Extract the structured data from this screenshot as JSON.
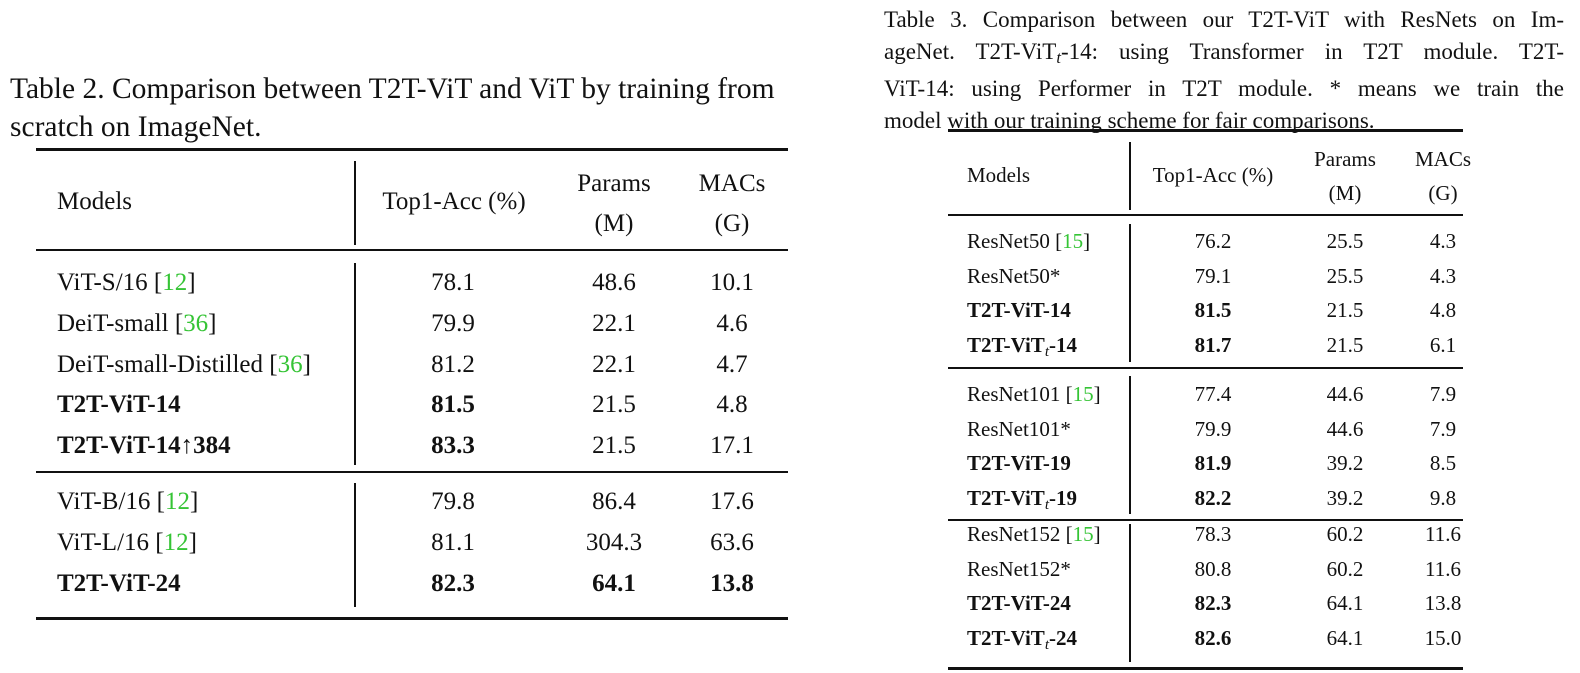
{
  "table2": {
    "caption": "Table 2. Comparison between T2T-ViT and ViT by training from scratch on ImageNet.",
    "caption_lines": [
      "Table 2. Comparison between T2T-ViT and ViT by training from",
      "scratch on ImageNet."
    ],
    "headers": {
      "models": "Models",
      "top1": "Top1-Acc (%)",
      "params_1": "Params",
      "params_2": "(M)",
      "macs_1": "MACs",
      "macs_2": "(G)"
    },
    "groups": [
      [
        {
          "model": "ViT-S/16",
          "ref": "12",
          "top1": "78.1",
          "params": "48.6",
          "macs": "10.1",
          "bold": []
        },
        {
          "model": "DeiT-small",
          "ref": "36",
          "top1": "79.9",
          "params": "22.1",
          "macs": "4.6",
          "bold": []
        },
        {
          "model": "DeiT-small-Distilled",
          "ref": "36",
          "top1": "81.2",
          "params": "22.1",
          "macs": "4.7",
          "bold": []
        },
        {
          "model": "T2T-ViT-14",
          "ref": "",
          "top1": "81.5",
          "params": "21.5",
          "macs": "4.8",
          "bold": [
            "model",
            "top1"
          ]
        },
        {
          "model": "T2T-ViT-14↑384",
          "ref": "",
          "top1": "83.3",
          "params": "21.5",
          "macs": "17.1",
          "bold": [
            "model",
            "top1"
          ]
        }
      ],
      [
        {
          "model": "ViT-B/16",
          "ref": "12",
          "top1": "79.8",
          "params": "86.4",
          "macs": "17.6",
          "bold": []
        },
        {
          "model": "ViT-L/16",
          "ref": "12",
          "top1": "81.1",
          "params": "304.3",
          "macs": "63.6",
          "bold": []
        },
        {
          "model": "T2T-ViT-24",
          "ref": "",
          "top1": "82.3",
          "params": "64.1",
          "macs": "13.8",
          "bold": [
            "model",
            "top1",
            "params",
            "macs"
          ]
        }
      ]
    ]
  },
  "table3": {
    "caption_lines": [
      "Table 3. Comparison between our T2T-ViT with ResNets on Im-",
      "ageNet. T2T-ViT_t-14: using Transformer in T2T module. T2T-",
      "ViT-14: using Performer in T2T module. * means we train the",
      "model with our training scheme for fair comparisons."
    ],
    "headers": {
      "models": "Models",
      "top1": "Top1-Acc (%)",
      "params_1": "Params",
      "params_2": "(M)",
      "macs_1": "MACs",
      "macs_2": "(G)"
    },
    "groups": [
      [
        {
          "model": "ResNet50",
          "ref": "15",
          "top1": "76.2",
          "params": "25.5",
          "macs": "4.3",
          "bold": []
        },
        {
          "model": "ResNet50*",
          "ref": "",
          "top1": "79.1",
          "params": "25.5",
          "macs": "4.3",
          "bold": []
        },
        {
          "model": "T2T-ViT-14",
          "ref": "",
          "top1": "81.5",
          "params": "21.5",
          "macs": "4.8",
          "bold": [
            "model",
            "top1"
          ]
        },
        {
          "model": "T2T-ViT",
          "sub": "t",
          "suffix": "-14",
          "ref": "",
          "top1": "81.7",
          "params": "21.5",
          "macs": "6.1",
          "bold": [
            "model",
            "top1"
          ]
        }
      ],
      [
        {
          "model": "ResNet101",
          "ref": "15",
          "top1": "77.4",
          "params": "44.6",
          "macs": "7.9",
          "bold": []
        },
        {
          "model": "ResNet101*",
          "ref": "",
          "top1": "79.9",
          "params": "44.6",
          "macs": "7.9",
          "bold": []
        },
        {
          "model": "T2T-ViT-19",
          "ref": "",
          "top1": "81.9",
          "params": "39.2",
          "macs": "8.5",
          "bold": [
            "model",
            "top1"
          ]
        },
        {
          "model": "T2T-ViT",
          "sub": "t",
          "suffix": "-19",
          "ref": "",
          "top1": "82.2",
          "params": "39.2",
          "macs": "9.8",
          "bold": [
            "model",
            "top1"
          ]
        }
      ],
      [
        {
          "model": "ResNet152",
          "ref": "15",
          "top1": "78.3",
          "params": "60.2",
          "macs": "11.6",
          "bold": []
        },
        {
          "model": "ResNet152*",
          "ref": "",
          "top1": "80.8",
          "params": "60.2",
          "macs": "11.6",
          "bold": []
        },
        {
          "model": "T2T-ViT-24",
          "ref": "",
          "top1": "82.3",
          "params": "64.1",
          "macs": "13.8",
          "bold": [
            "model",
            "top1"
          ]
        },
        {
          "model": "T2T-ViT",
          "sub": "t",
          "suffix": "-24",
          "ref": "",
          "top1": "82.6",
          "params": "64.1",
          "macs": "15.0",
          "bold": [
            "model",
            "top1"
          ]
        }
      ]
    ]
  },
  "colors": {
    "citation": "#35c435",
    "text": "#111111",
    "background": "#ffffff"
  }
}
